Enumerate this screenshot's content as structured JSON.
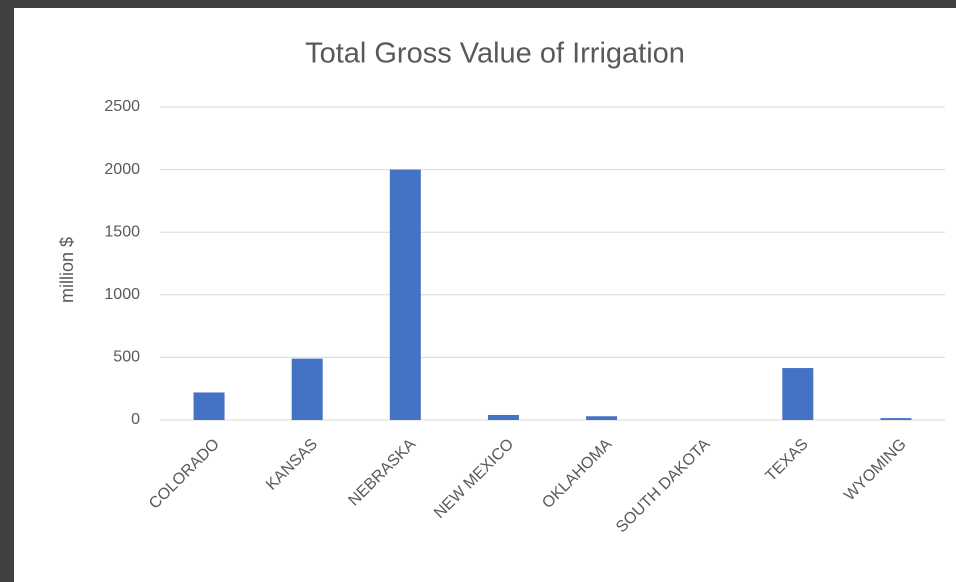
{
  "chart_data": {
    "type": "bar",
    "title": "Total Gross Value of Irrigation",
    "y_label": "million $",
    "categories": [
      "COLORADO",
      "KANSAS",
      "NEBRASKA",
      "NEW MEXICO",
      "OKLAHOMA",
      "SOUTH DAKOTA",
      "TEXAS",
      "WYOMING"
    ],
    "values": [
      220,
      490,
      2000,
      40,
      30,
      0,
      415,
      15
    ],
    "color": "#4472c4",
    "ylim": [
      0,
      2500
    ],
    "yticks": [
      0,
      500,
      1000,
      1500,
      2000,
      2500
    ],
    "grid": true
  }
}
